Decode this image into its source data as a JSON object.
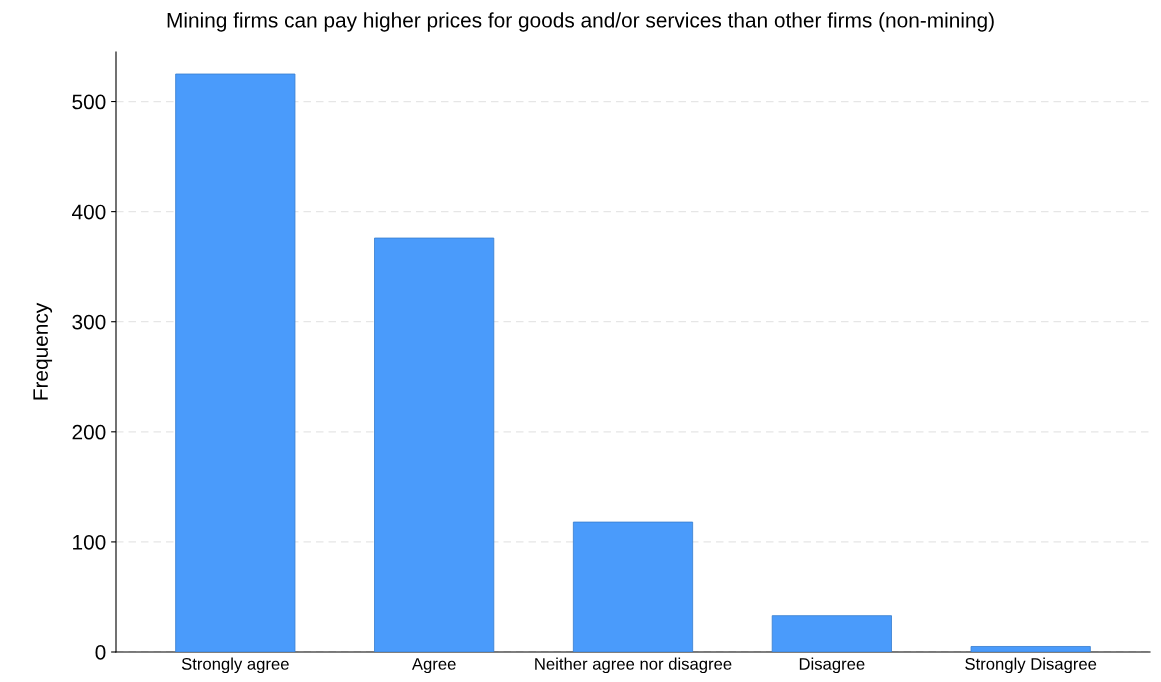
{
  "chart_data": {
    "type": "bar",
    "title": "Mining firms can pay higher prices for goods and/or services than other firms (non-mining)",
    "ylabel": "Frequency",
    "categories": [
      "Strongly agree",
      "Agree",
      "Neither agree nor disagree",
      "Disagree",
      "Strongly Disagree"
    ],
    "values": [
      525,
      376,
      118,
      33,
      5
    ],
    "color": "#4a9bfb",
    "ylim": [
      0,
      545
    ],
    "yticks": [
      0,
      100,
      200,
      300,
      400,
      500
    ],
    "grid": "y"
  }
}
